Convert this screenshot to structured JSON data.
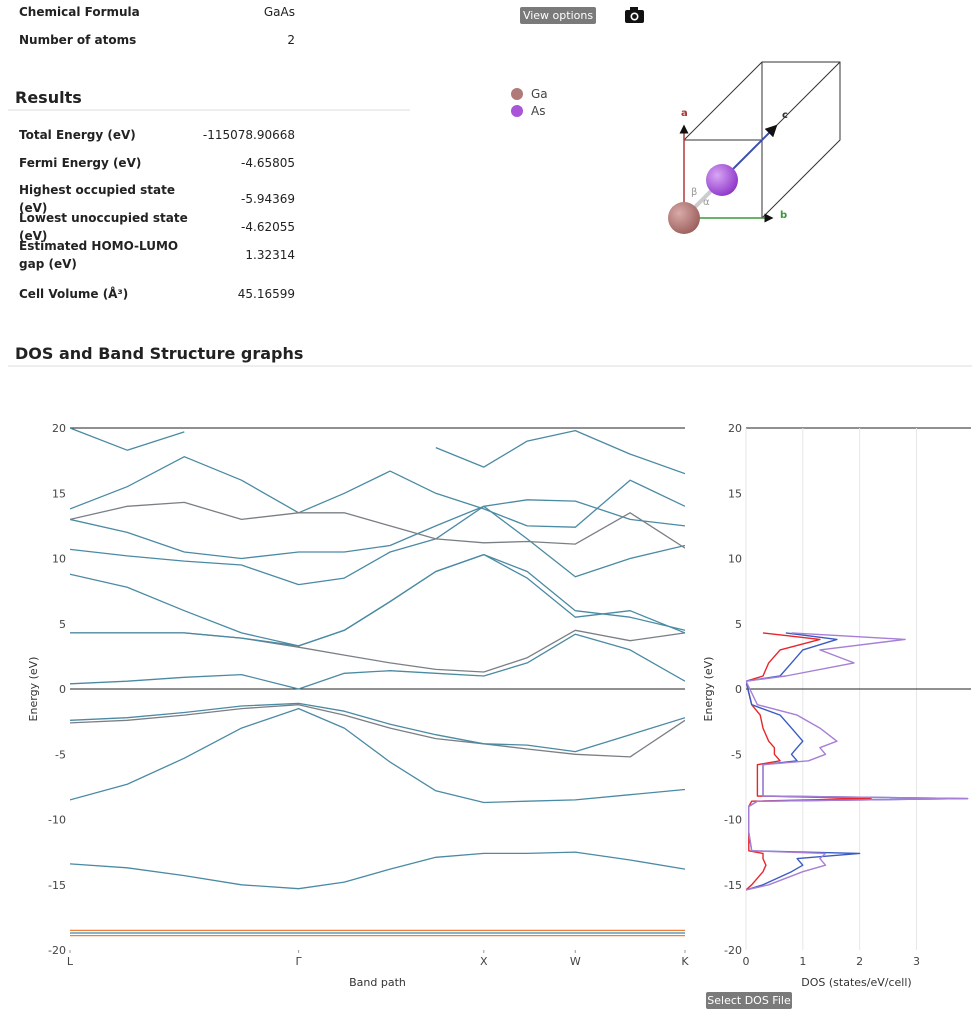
{
  "properties": {
    "rows": [
      [
        "Chemical Formula",
        "GaAs"
      ],
      [
        "Number of atoms",
        2
      ]
    ]
  },
  "results": {
    "title": "Results",
    "rows": [
      [
        "Total Energy (eV)",
        -115078.90668
      ],
      [
        "Fermi Energy (eV)",
        -4.65805
      ],
      [
        "Highest occupied state (eV)",
        -5.94369
      ],
      [
        "Lowest unoccupied state (eV)",
        -4.62055
      ],
      [
        "Estimated HOMO-LUMO gap (eV)",
        1.32314
      ],
      [
        "Cell Volume (Å³)",
        45.16599
      ]
    ]
  },
  "viewer": {
    "button": "View options",
    "legend": [
      {
        "name": "Ga",
        "color": "#b07a78"
      },
      {
        "name": "As",
        "color": "#a855d8"
      }
    ],
    "axes": [
      "a",
      "b",
      "c"
    ],
    "angles": [
      "β",
      "α"
    ]
  },
  "section_title": "DOS and Band Structure graphs",
  "dos_button": "Select DOS File",
  "chart_data": [
    {
      "type": "line",
      "xlabel": "Band path",
      "ylabel": "Energy (eV)",
      "x": [
        0,
        0.25,
        0.5,
        0.75,
        1.0,
        1.2,
        1.4,
        1.6,
        1.81,
        2.0,
        2.21,
        2.45,
        2.69
      ],
      "xlim": [
        0,
        2.69
      ],
      "xticks": [
        {
          "value": 0,
          "label": "L"
        },
        {
          "value": 1.0,
          "label": "Γ"
        },
        {
          "value": 1.81,
          "label": "X"
        },
        {
          "value": 2.21,
          "label": "W"
        },
        {
          "value": 2.69,
          "label": "K"
        }
      ],
      "ylim": [
        -20,
        20
      ],
      "yticks": [
        20,
        15,
        10,
        5,
        0,
        -5,
        -10,
        -15,
        -20
      ],
      "zeroline": true,
      "grid": false,
      "series": [
        {
          "color": "#f07f3c",
          "values": [
            -18.5,
            -18.5,
            -18.5,
            -18.5,
            -18.5,
            -18.5,
            -18.5,
            -18.5,
            -18.5,
            -18.5,
            -18.5,
            -18.5,
            -18.5
          ]
        },
        {
          "color": "#3f87a6",
          "values": [
            -18.7,
            -18.7,
            -18.7,
            -18.7,
            -18.7,
            -18.7,
            -18.7,
            -18.7,
            -18.7,
            -18.7,
            -18.7,
            -18.7,
            -18.7
          ]
        },
        {
          "color": "#f07f3c",
          "values": [
            -18.9,
            -18.9,
            -18.9,
            -18.9,
            -18.9,
            -18.9,
            -18.9,
            -18.9,
            -18.9,
            -18.9,
            -18.9,
            -18.9,
            -18.9
          ]
        },
        {
          "color": "#4a8aa3",
          "values": [
            -13.4,
            -13.7,
            -14.3,
            -15.0,
            -15.3,
            -14.8,
            -13.8,
            -12.9,
            -12.6,
            -12.6,
            -12.5,
            -13.1,
            -13.8
          ]
        },
        {
          "color": "#4a8aa3",
          "values": [
            -8.5,
            -7.3,
            -5.3,
            -3.0,
            -1.5,
            -3.0,
            -5.6,
            -7.8,
            -8.7,
            -8.6,
            -8.5,
            -8.1,
            -7.7
          ]
        },
        {
          "color": "#7a7f86",
          "values": [
            -2.6,
            -2.4,
            -2.0,
            -1.5,
            -1.2,
            -2.0,
            -3.0,
            -3.8,
            -4.2,
            -4.6,
            -5.0,
            -5.2,
            -2.4
          ]
        },
        {
          "color": "#4a8aa3",
          "values": [
            -2.4,
            -2.2,
            -1.8,
            -1.3,
            -1.1,
            -1.7,
            -2.7,
            -3.5,
            -4.2,
            -4.3,
            -4.8,
            -3.5,
            -2.2
          ]
        },
        {
          "color": "#4a8aa3",
          "values": [
            0.4,
            0.6,
            0.9,
            1.1,
            0,
            1.2,
            1.4,
            1.2,
            1.0,
            2.0,
            4.2,
            3.0,
            0.6
          ]
        },
        {
          "color": "#7a7f86",
          "values": [
            4.3,
            4.3,
            4.3,
            3.9,
            3.2,
            2.6,
            2.0,
            1.5,
            1.3,
            2.4,
            4.5,
            3.7,
            4.3
          ]
        },
        {
          "color": "#4a8aa3",
          "values": [
            4.3,
            4.3,
            4.3,
            3.9,
            3.3,
            4.5,
            6.7,
            9.0,
            10.3,
            8.5,
            5.5,
            6.0,
            4.3
          ]
        },
        {
          "color": "#4a8aa3",
          "values": [
            8.8,
            7.8,
            6.0,
            4.3,
            3.3,
            4.5,
            6.7,
            9.0,
            10.3,
            9.0,
            6.0,
            5.5,
            4.5
          ]
        },
        {
          "color": "#4a8aa3",
          "values": [
            10.7,
            10.2,
            9.8,
            9.5,
            8.0,
            8.5,
            10.5,
            11.5,
            14.0,
            11.5,
            8.6,
            10.0,
            11.0
          ]
        },
        {
          "color": "#4a8aa3",
          "values": [
            13.0,
            12.0,
            10.5,
            10.0,
            10.5,
            10.5,
            11.0,
            12.5,
            14.0,
            14.5,
            14.4,
            13.0,
            12.5
          ]
        },
        {
          "color": "#4a8aa3",
          "values": [
            13.8,
            15.5,
            17.8,
            16.0,
            13.5,
            15.0,
            16.7,
            15.0,
            13.8,
            12.5,
            12.4,
            16.0,
            14.0
          ]
        },
        {
          "color": "#7a7f86",
          "values": [
            13.0,
            14.0,
            14.3,
            13.0,
            13.5,
            13.5,
            12.5,
            11.5,
            11.2,
            11.3,
            11.1,
            13.5,
            10.8
          ]
        },
        {
          "color": "#4a8aa3",
          "values": [
            20.0,
            18.3,
            19.7,
            null,
            null,
            null,
            null,
            18.5,
            17.0,
            19.0,
            19.8,
            18.0,
            16.5
          ]
        }
      ]
    },
    {
      "type": "line",
      "orientation": "horizontal",
      "xlabel": "DOS (states/eV/cell)",
      "ylabel": "Energy (eV)",
      "energy": [
        -15.4,
        -15,
        -14,
        -13.5,
        -13,
        -12.6,
        -12.4,
        -11,
        -9,
        -8.6,
        -8.4,
        -8.2,
        -7,
        -5.8,
        -5.5,
        -5,
        -4.5,
        -4,
        -3,
        -2,
        -1.2,
        0.6,
        1,
        2,
        3,
        3.8,
        4.3
      ],
      "xlim": [
        0,
        3.96
      ],
      "xticks": [
        0,
        1,
        2,
        3
      ],
      "grid": true,
      "ylim": [
        -20,
        20
      ],
      "yticks": [
        20,
        15,
        10,
        5,
        0,
        -5,
        -10,
        -15,
        -20
      ],
      "zeroline": true,
      "series": [
        {
          "color": "#e8262a",
          "values": [
            0,
            0.1,
            0.3,
            0.35,
            0.3,
            0.3,
            0.05,
            0.05,
            0.05,
            0.1,
            2.2,
            0.2,
            0.2,
            0.2,
            0.6,
            0.5,
            0.5,
            0.4,
            0.3,
            0.25,
            0.1,
            0,
            0.3,
            0.4,
            0.6,
            1.3,
            0.3
          ]
        },
        {
          "color": "#3b5bc4",
          "values": [
            0,
            0.3,
            0.8,
            1.0,
            0.9,
            2.0,
            0.1,
            0.05,
            0.05,
            0.2,
            3.9,
            0.3,
            0.3,
            0.3,
            0.9,
            0.8,
            0.9,
            1.0,
            0.8,
            0.6,
            0.1,
            0,
            0.6,
            0.8,
            1.0,
            1.6,
            0.7
          ]
        },
        {
          "color": "#a77fd6",
          "values": [
            0,
            0.4,
            1.0,
            1.4,
            1.3,
            1.4,
            0.1,
            0.05,
            0.05,
            0.2,
            3.9,
            0.3,
            0.3,
            0.3,
            1.1,
            1.4,
            1.3,
            1.6,
            1.3,
            0.9,
            0.2,
            0,
            0.7,
            1.9,
            1.3,
            2.8,
            0.8
          ]
        }
      ]
    }
  ]
}
